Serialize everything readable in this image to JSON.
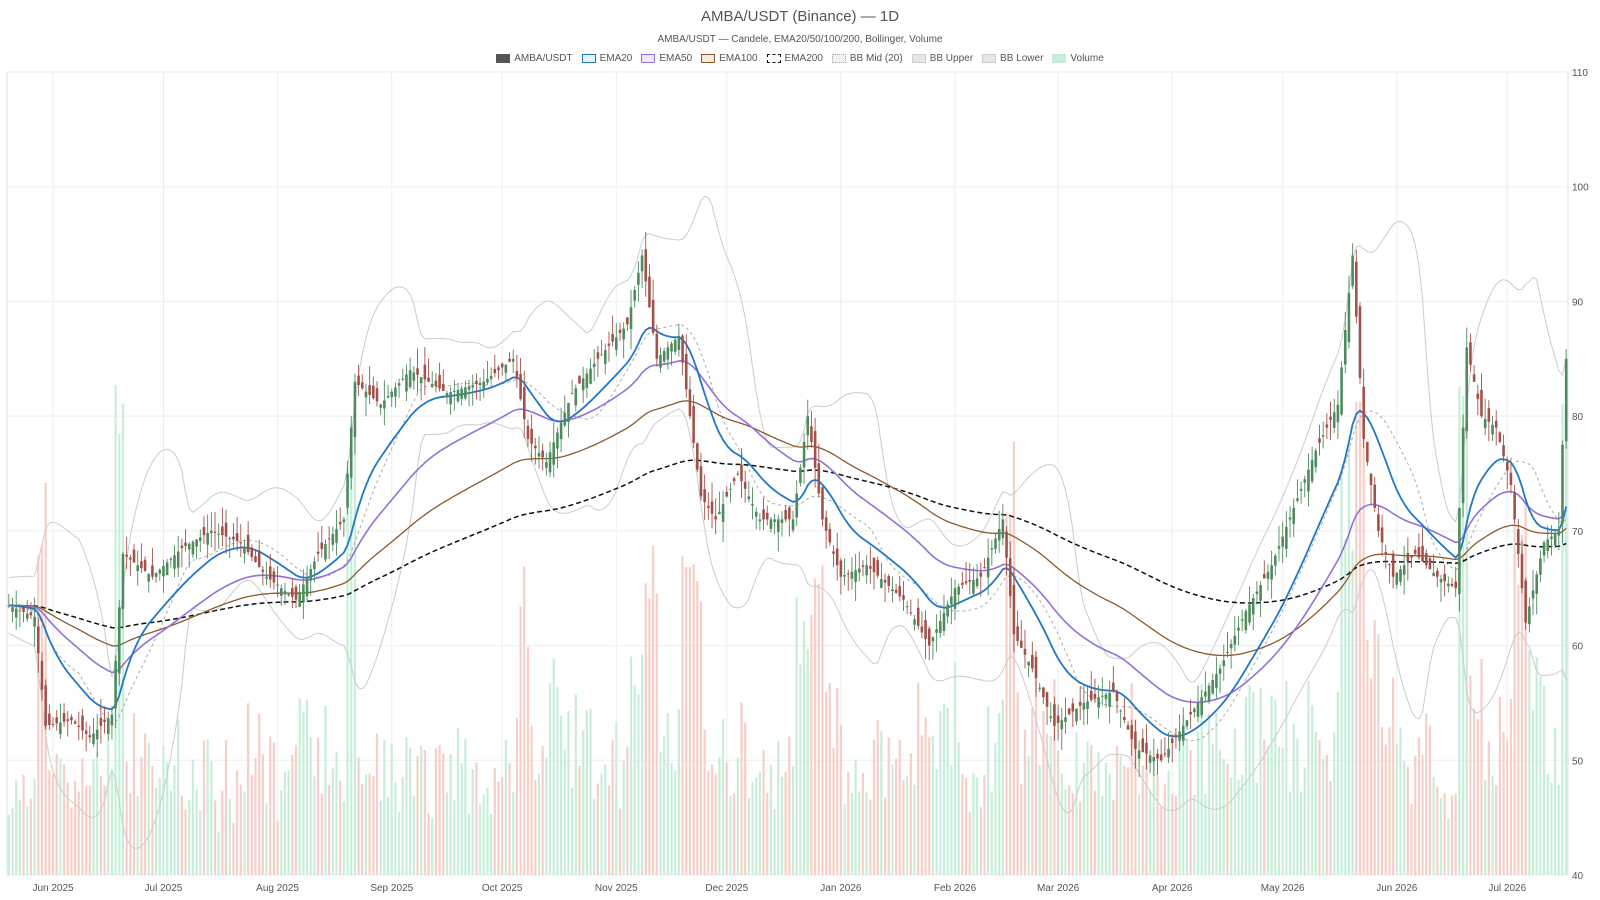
{
  "chart_data": {
    "type": "candlestick",
    "title": "AMBA/USDT (Binance) — 1D",
    "subtitle": "AMBA/USDT — Candele, EMA20/50/100/200, Bollinger, Volume",
    "legend": [
      {
        "label": "AMBA/USDT",
        "color": "#555555",
        "fill": "#555555",
        "style": "solid"
      },
      {
        "label": "EMA20",
        "color": "#1f78c8",
        "fill": "#e6f0fa",
        "style": "solid"
      },
      {
        "label": "EMA50",
        "color": "#9370db",
        "fill": "#efe9fa",
        "style": "solid"
      },
      {
        "label": "EMA100",
        "color": "#8b5a2b",
        "fill": "#f5ebe1",
        "style": "solid"
      },
      {
        "label": "EMA200",
        "color": "#111111",
        "fill": "#ffffff",
        "style": "dashed"
      },
      {
        "label": "BB Mid (20)",
        "color": "#aaaaaa",
        "fill": "#f2f2f2",
        "style": "dotted"
      },
      {
        "label": "BB Upper",
        "color": "#cccccc",
        "fill": "#e6e6e6",
        "style": "solid"
      },
      {
        "label": "BB Lower",
        "color": "#cccccc",
        "fill": "#e6e6e6",
        "style": "solid"
      },
      {
        "label": "Volume",
        "color": "#bfead3",
        "fill": "#c8eed9",
        "style": "solid"
      }
    ],
    "x_range": [
      "2025-06-03",
      "2026-07-31"
    ],
    "ylim": [
      40,
      110
    ],
    "y_ticks": [
      40,
      50,
      60,
      70,
      80,
      90,
      100,
      110
    ],
    "y_axis_side": "right",
    "x_ticks": [
      {
        "date": "2025-06-15",
        "label": "Jun 2025"
      },
      {
        "date": "2025-07-15",
        "label": "Jul 2025"
      },
      {
        "date": "2025-08-15",
        "label": "Aug 2025"
      },
      {
        "date": "2025-09-15",
        "label": "Sep 2025"
      },
      {
        "date": "2025-10-15",
        "label": "Oct 2025"
      },
      {
        "date": "2025-11-15",
        "label": "Nov 2025"
      },
      {
        "date": "2025-12-15",
        "label": "Dec 2025"
      },
      {
        "date": "2026-01-15",
        "label": "Jan 2026"
      },
      {
        "date": "2026-02-15",
        "label": "Feb 2026"
      },
      {
        "date": "2026-03-15",
        "label": "Mar 2026"
      },
      {
        "date": "2026-04-15",
        "label": "Apr 2026"
      },
      {
        "date": "2026-05-15",
        "label": "May 2026"
      },
      {
        "date": "2026-06-15",
        "label": "Jun 2026"
      },
      {
        "date": "2026-07-15",
        "label": "Jul 2026"
      }
    ],
    "grid": true,
    "colors": {
      "up": "#4e8a5e",
      "down": "#a0524a",
      "vol_up": "#c8eed9",
      "vol_down": "#f6cfc8",
      "grid": "#eeeeee",
      "axis_text": "#555555"
    },
    "price_anchors": [
      {
        "date": "2025-06-03",
        "close": 63.5
      },
      {
        "date": "2025-06-10",
        "close": 62.5
      },
      {
        "date": "2025-06-13",
        "close": 53
      },
      {
        "date": "2025-06-20",
        "close": 53.5
      },
      {
        "date": "2025-06-25",
        "close": 52
      },
      {
        "date": "2025-07-01",
        "close": 54
      },
      {
        "date": "2025-07-04",
        "close": 68
      },
      {
        "date": "2025-07-12",
        "close": 66
      },
      {
        "date": "2025-07-20",
        "close": 68.5
      },
      {
        "date": "2025-07-28",
        "close": 70
      },
      {
        "date": "2025-08-05",
        "close": 69
      },
      {
        "date": "2025-08-12",
        "close": 66
      },
      {
        "date": "2025-08-20",
        "close": 64
      },
      {
        "date": "2025-08-26",
        "close": 68
      },
      {
        "date": "2025-09-02",
        "close": 71
      },
      {
        "date": "2025-09-05",
        "close": 83
      },
      {
        "date": "2025-09-12",
        "close": 81
      },
      {
        "date": "2025-09-20",
        "close": 84
      },
      {
        "date": "2025-09-30",
        "close": 82
      },
      {
        "date": "2025-10-10",
        "close": 83
      },
      {
        "date": "2025-10-18",
        "close": 85
      },
      {
        "date": "2025-10-22",
        "close": 78
      },
      {
        "date": "2025-10-27",
        "close": 76
      },
      {
        "date": "2025-11-03",
        "close": 82
      },
      {
        "date": "2025-11-10",
        "close": 85
      },
      {
        "date": "2025-11-18",
        "close": 88
      },
      {
        "date": "2025-11-22",
        "close": 94
      },
      {
        "date": "2025-11-26",
        "close": 85
      },
      {
        "date": "2025-12-02",
        "close": 87
      },
      {
        "date": "2025-12-05",
        "close": 80
      },
      {
        "date": "2025-12-08",
        "close": 73
      },
      {
        "date": "2025-12-12",
        "close": 71
      },
      {
        "date": "2025-12-18",
        "close": 75
      },
      {
        "date": "2025-12-24",
        "close": 71
      },
      {
        "date": "2026-01-02",
        "close": 71
      },
      {
        "date": "2026-01-06",
        "close": 80
      },
      {
        "date": "2026-01-10",
        "close": 71
      },
      {
        "date": "2026-01-15",
        "close": 66
      },
      {
        "date": "2026-01-22",
        "close": 67
      },
      {
        "date": "2026-02-01",
        "close": 64
      },
      {
        "date": "2026-02-08",
        "close": 60
      },
      {
        "date": "2026-02-15",
        "close": 65
      },
      {
        "date": "2026-02-22",
        "close": 66
      },
      {
        "date": "2026-02-28",
        "close": 71
      },
      {
        "date": "2026-03-03",
        "close": 61
      },
      {
        "date": "2026-03-08",
        "close": 58
      },
      {
        "date": "2026-03-14",
        "close": 53
      },
      {
        "date": "2026-03-22",
        "close": 55
      },
      {
        "date": "2026-03-30",
        "close": 56
      },
      {
        "date": "2026-04-05",
        "close": 51
      },
      {
        "date": "2026-04-12",
        "close": 50
      },
      {
        "date": "2026-04-20",
        "close": 54
      },
      {
        "date": "2026-04-28",
        "close": 58
      },
      {
        "date": "2026-05-05",
        "close": 63
      },
      {
        "date": "2026-05-12",
        "close": 67
      },
      {
        "date": "2026-05-18",
        "close": 72
      },
      {
        "date": "2026-05-24",
        "close": 77
      },
      {
        "date": "2026-05-30",
        "close": 81
      },
      {
        "date": "2026-06-03",
        "close": 94
      },
      {
        "date": "2026-06-06",
        "close": 78
      },
      {
        "date": "2026-06-10",
        "close": 70
      },
      {
        "date": "2026-06-14",
        "close": 66
      },
      {
        "date": "2026-06-20",
        "close": 68
      },
      {
        "date": "2026-06-26",
        "close": 66
      },
      {
        "date": "2026-07-01",
        "close": 65
      },
      {
        "date": "2026-07-04",
        "close": 86
      },
      {
        "date": "2026-07-08",
        "close": 80
      },
      {
        "date": "2026-07-12",
        "close": 79
      },
      {
        "date": "2026-07-16",
        "close": 74
      },
      {
        "date": "2026-07-20",
        "close": 62
      },
      {
        "date": "2026-07-25",
        "close": 69
      },
      {
        "date": "2026-07-29",
        "close": 70
      },
      {
        "date": "2026-07-31",
        "close": 85
      }
    ]
  }
}
